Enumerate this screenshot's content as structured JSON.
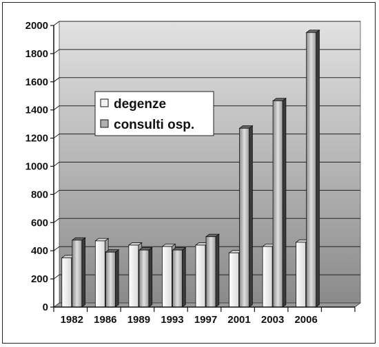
{
  "chart_data": {
    "type": "bar",
    "title": "",
    "xlabel": "",
    "ylabel": "",
    "categories": [
      "1982",
      "1986",
      "1989",
      "1993",
      "1997",
      "2001",
      "2003",
      "2006"
    ],
    "series": [
      {
        "name": "degenze",
        "values": [
          350,
          470,
          440,
          430,
          440,
          385,
          430,
          460
        ]
      },
      {
        "name": "consulti osp.",
        "values": [
          475,
          390,
          405,
          405,
          500,
          1270,
          1465,
          1950
        ]
      }
    ],
    "ylim": [
      0,
      2000
    ],
    "yticks": [
      0,
      200,
      400,
      600,
      800,
      1000,
      1200,
      1400,
      1600,
      1800,
      2000
    ],
    "grid": true,
    "legend_position": "left-center",
    "colors": {
      "degenze": "#f2f2f2",
      "consulti osp.": "#b0b0b0",
      "wall_top": "#d8d8d8",
      "wall_bottom": "#8e8e8e"
    }
  }
}
